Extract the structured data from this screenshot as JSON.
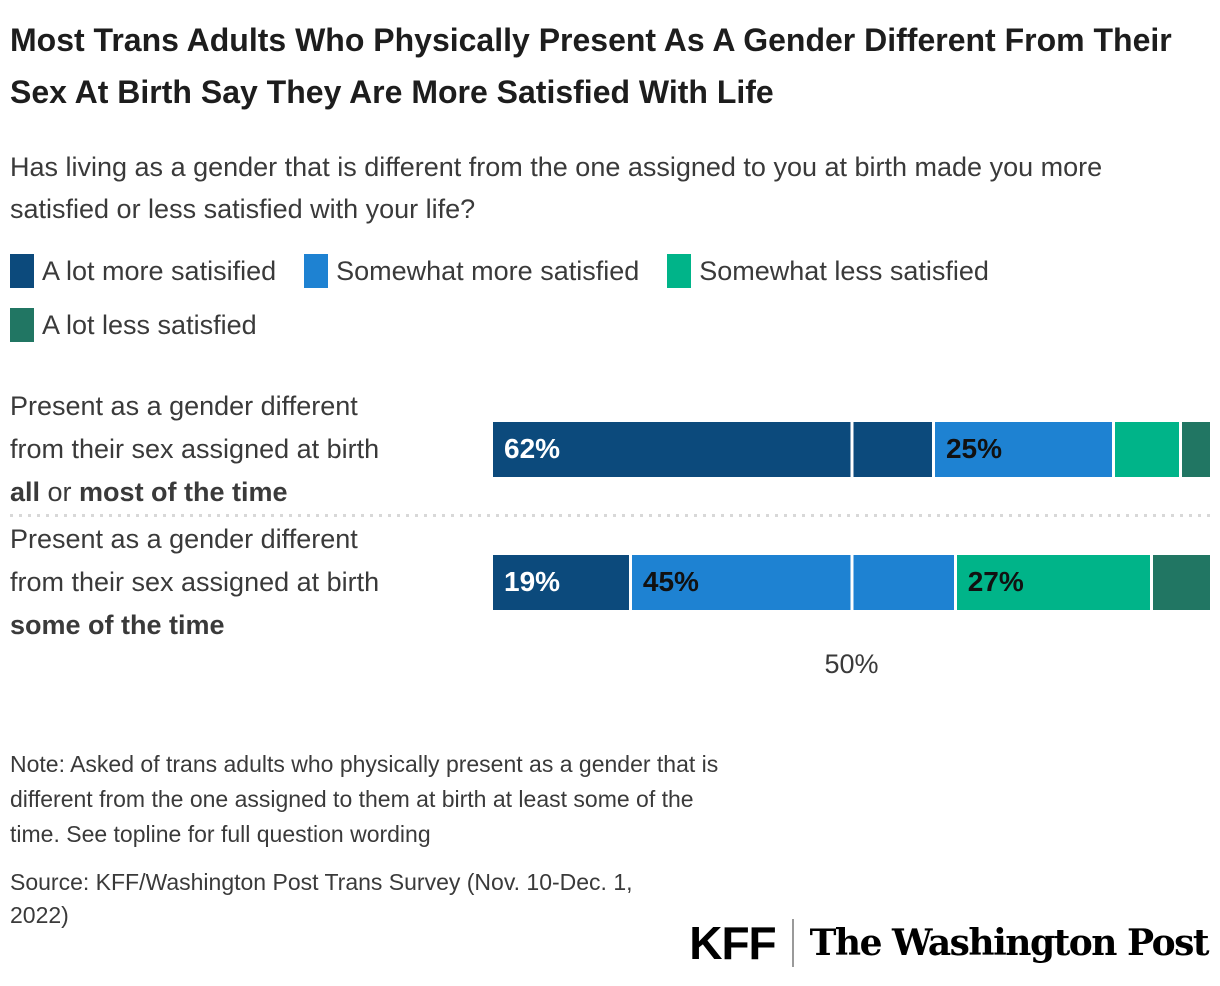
{
  "title": "Most Trans Adults Who Physically Present As A Gender Different From Their Sex At Birth Say They Are More Satisfied With Life",
  "subtitle": "Has living as a gender that is different from the one assigned to you at birth made you more satisfied or less satisfied with your life?",
  "legend": [
    {
      "label": "A lot more satisified",
      "color": "#0c4a7c"
    },
    {
      "label": "Somewhat more satisfied",
      "color": "#1e82d2"
    },
    {
      "label": "Somewhat less satisfied",
      "color": "#00b489"
    },
    {
      "label": "A lot less satisfied",
      "color": "#217663"
    }
  ],
  "chart_data": {
    "type": "bar",
    "orientation": "horizontal",
    "stacked": true,
    "unit": "percent",
    "x_axis": {
      "range": [
        0,
        100
      ],
      "gridline_at": 50,
      "tick_label": "50%"
    },
    "categories": [
      "Present as a gender different from their sex assigned at birth all or most of the time",
      "Present as a gender different from their sex assigned at birth some of the time"
    ],
    "category_label_parts": [
      [
        {
          "text": "Present as a gender different\nfrom their sex assigned at birth\n",
          "bold": false
        },
        {
          "text": "all",
          "bold": true
        },
        {
          "text": " or ",
          "bold": false
        },
        {
          "text": "most of the time",
          "bold": true
        }
      ],
      [
        {
          "text": "Present as a gender different\nfrom their sex assigned at birth\n",
          "bold": false
        },
        {
          "text": "some of the time",
          "bold": true
        }
      ]
    ],
    "series": [
      {
        "name": "A lot more satisified",
        "color": "#0c4a7c",
        "label_text_color": "#ffffff",
        "values": [
          62,
          19
        ],
        "value_labels": [
          "62%",
          "19%"
        ]
      },
      {
        "name": "Somewhat more satisfied",
        "color": "#1e82d2",
        "label_text_color": "#111111",
        "values": [
          25,
          45
        ],
        "value_labels": [
          "25%",
          "45%"
        ]
      },
      {
        "name": "Somewhat less satisfied",
        "color": "#00b489",
        "label_text_color": "#111111",
        "values": [
          9,
          27
        ],
        "value_labels": [
          "",
          "27%"
        ]
      },
      {
        "name": "A lot less satisfied",
        "color": "#217663",
        "label_text_color": "#ffffff",
        "values": [
          4,
          8
        ],
        "value_labels": [
          "",
          ""
        ]
      }
    ]
  },
  "note": "Note: Asked of trans adults who physically present as a gender that is different from the one assigned to them at birth at least some of the time. See topline for full question wording",
  "source": "Source: KFF/Washington Post Trans Survey (Nov. 10-Dec. 1, 2022)",
  "logos": {
    "kff": "KFF",
    "washington_post": "The Washington Post"
  }
}
